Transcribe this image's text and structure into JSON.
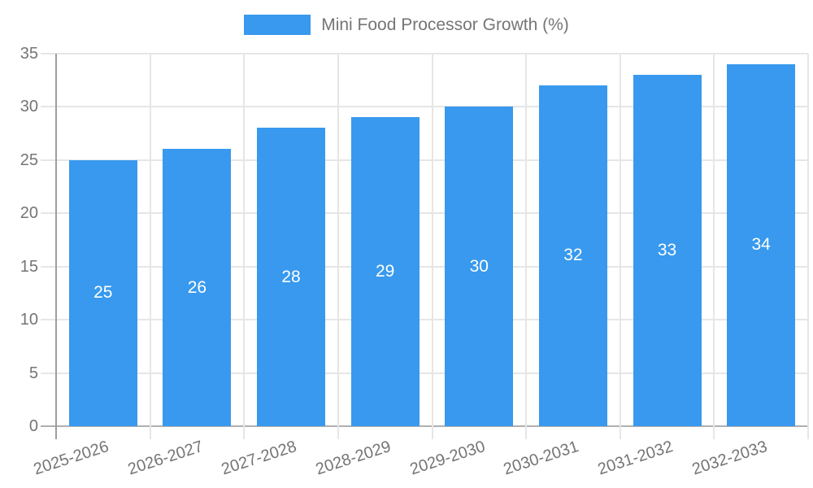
{
  "chart_data": {
    "type": "bar",
    "title": "Mini Food Processor Growth (%)",
    "categories": [
      "2025-2026",
      "2026-2027",
      "2027-2028",
      "2028-2029",
      "2029-2030",
      "2030-2031",
      "2031-2032",
      "2032-2033"
    ],
    "values": [
      25,
      26,
      28,
      29,
      30,
      32,
      33,
      34
    ],
    "xlabel": "",
    "ylabel": "",
    "ylim": [
      0,
      35
    ],
    "yticks": [
      0,
      5,
      10,
      15,
      20,
      25,
      30,
      35
    ],
    "grid": true,
    "legend_position": "top",
    "bar_color": "#3899EE",
    "value_label_color": "#ffffff",
    "tick_text_color": "#757575",
    "legend_text_color": "#757575",
    "gridline_color": "#E6E6E6",
    "axis_line_color": "#9E9E9E",
    "baseline_color": "#B0B0B0"
  }
}
